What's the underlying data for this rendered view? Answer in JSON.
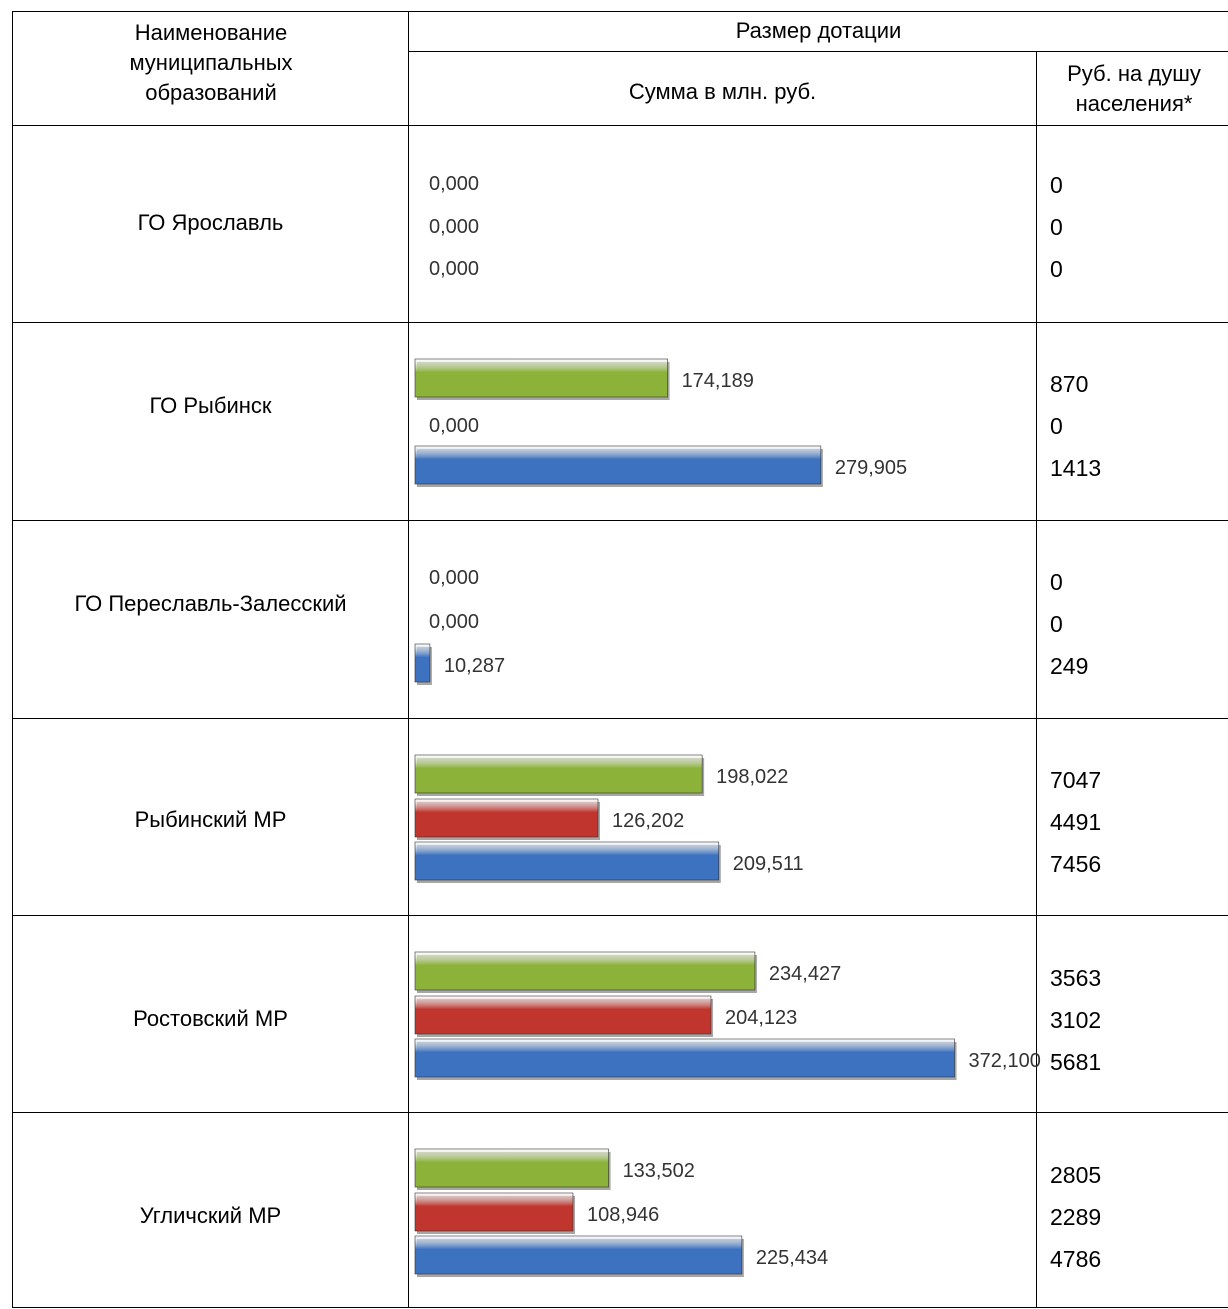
{
  "header": {
    "col_name": "Наименование муниципальных образований",
    "col_group": "Размер дотации",
    "col_sum": "Сумма в млн. руб.",
    "col_per_capita": "Руб. на душу населения*"
  },
  "colors": {
    "green": "#8cb23a",
    "red": "#c0352d",
    "blue": "#3c72c0"
  },
  "chart_data": {
    "type": "bar",
    "orientation": "horizontal",
    "unit": "млн. руб.",
    "categories": [
      "ГО Ярославль",
      "ГО Рыбинск",
      "ГО Переславль-Залесский",
      "Рыбинский МР",
      "Ростовский МР",
      "Угличский МР"
    ],
    "xlim": [
      0,
      400
    ],
    "series": [
      {
        "color": "#8cb23a",
        "values": [
          0,
          174.189,
          0,
          198.022,
          234.427,
          133.502
        ],
        "labels": [
          "",
          "174,189",
          "",
          "198,022",
          "234,427",
          "133,502"
        ]
      },
      {
        "color": "#c0352d",
        "values": [
          0,
          0,
          0,
          126.202,
          204.123,
          108.946
        ],
        "labels": [
          "",
          "",
          "",
          "126,202",
          "204,123",
          "108,946"
        ]
      },
      {
        "color": "#3c72c0",
        "values": [
          0,
          279.905,
          10.287,
          209.511,
          372.1,
          225.434
        ],
        "labels": [
          "",
          "279,905",
          "10,287",
          "209,511",
          "372,100",
          "225,434"
        ]
      }
    ]
  },
  "rows": [
    {
      "name": "ГО Ярославль",
      "zero_labels": [
        "0,000",
        "0,000",
        "0,000"
      ],
      "per_capita": [
        "0",
        "0",
        "0"
      ]
    },
    {
      "name": "ГО Рыбинск",
      "zero_labels": [
        "0,000"
      ],
      "per_capita": [
        "870",
        "0",
        "1413"
      ]
    },
    {
      "name": "ГО Переславль-Залесский",
      "zero_labels": [
        "0,000",
        "0,000"
      ],
      "per_capita": [
        "0",
        "0",
        "249"
      ]
    },
    {
      "name": "Рыбинский МР",
      "zero_labels": [],
      "per_capita": [
        "7047",
        "4491",
        "7456"
      ]
    },
    {
      "name": "Ростовский МР",
      "zero_labels": [],
      "per_capita": [
        "3563",
        "3102",
        "5681"
      ]
    },
    {
      "name": "Угличский МР",
      "zero_labels": [],
      "per_capita": [
        "2805",
        "2289",
        "4786"
      ]
    }
  ]
}
